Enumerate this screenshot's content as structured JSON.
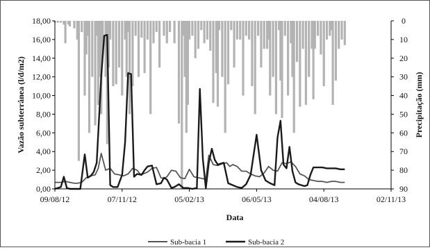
{
  "chart_data": {
    "type": "line",
    "title": "",
    "xlabel": "Data",
    "ylabel": "Vazão subterrânea (l/d/m2)",
    "y2label": "Precipitação (mm)",
    "x_tick_labels": [
      "09/08/12",
      "07/11/12",
      "05/02/13",
      "06/05/13",
      "04/08/13",
      "02/11/13"
    ],
    "x_ticks_days": [
      0,
      90,
      180,
      270,
      360,
      450
    ],
    "xlim_days": [
      0,
      450
    ],
    "y_tick_labels": [
      "0,00",
      "2,00",
      "4,00",
      "6,00",
      "8,00",
      "10,00",
      "12,00",
      "14,00",
      "16,00",
      "18,00"
    ],
    "ylim": [
      0,
      18
    ],
    "y2_tick_labels": [
      "0",
      "10",
      "20",
      "30",
      "40",
      "50",
      "60",
      "70",
      "80",
      "90"
    ],
    "y2lim": [
      0,
      90
    ],
    "y2_inverted": true,
    "grid": false,
    "legend_position": "bottom-center",
    "colors": {
      "sub1": "#555555",
      "sub2": "#1a1a1a",
      "precip": "#b3b3b3"
    },
    "series": [
      {
        "name": "Sub-bacia 1",
        "x": [
          0,
          8,
          14,
          20,
          26,
          30,
          36,
          42,
          48,
          54,
          58,
          62,
          68,
          74,
          80,
          86,
          92,
          98,
          104,
          110,
          114,
          118,
          124,
          130,
          136,
          142,
          146,
          150,
          156,
          162,
          168,
          174,
          180,
          186,
          192,
          198,
          202,
          206,
          212,
          218,
          224,
          230,
          234,
          238,
          244,
          250,
          256,
          262,
          268,
          274,
          280,
          286,
          292,
          298,
          304,
          310,
          316,
          322,
          328,
          334,
          340,
          346,
          352,
          358,
          364,
          370,
          376,
          382,
          388
        ],
        "y": [
          0.7,
          0.7,
          0.8,
          0.7,
          0.6,
          0.6,
          0.7,
          1.2,
          1.4,
          1.5,
          2.2,
          3.8,
          2.0,
          2.2,
          1.6,
          1.5,
          1.4,
          1.6,
          2.2,
          2.0,
          1.6,
          1.6,
          1.8,
          2.2,
          2.3,
          1.2,
          1.1,
          1.3,
          2.0,
          1.9,
          1.2,
          1.1,
          2.1,
          1.3,
          1.2,
          1.1,
          1.0,
          3.6,
          2.6,
          2.5,
          2.7,
          2.8,
          2.4,
          2.6,
          2.4,
          1.9,
          1.9,
          1.6,
          1.4,
          1.3,
          1.7,
          2.4,
          2.0,
          1.9,
          2.8,
          2.7,
          2.9,
          2.4,
          1.6,
          1.4,
          1.0,
          0.9,
          0.8,
          0.8,
          0.7,
          0.8,
          0.8,
          0.7,
          0.7
        ]
      },
      {
        "name": "Sub-bacia 2",
        "x": [
          0,
          8,
          12,
          16,
          20,
          26,
          34,
          40,
          44,
          48,
          52,
          56,
          62,
          66,
          70,
          74,
          78,
          84,
          90,
          94,
          98,
          102,
          106,
          110,
          116,
          120,
          124,
          130,
          136,
          142,
          146,
          150,
          156,
          160,
          166,
          172,
          178,
          184,
          190,
          194,
          198,
          202,
          206,
          210,
          214,
          218,
          222,
          226,
          232,
          238,
          244,
          250,
          256,
          262,
          270,
          276,
          282,
          288,
          294,
          298,
          302,
          306,
          310,
          314,
          318,
          322,
          326,
          330,
          334,
          338,
          342,
          346,
          352,
          358,
          364,
          370,
          376,
          382,
          388
        ],
        "y": [
          0.0,
          0.2,
          1.3,
          0.1,
          0.0,
          0.0,
          0.0,
          3.7,
          1.2,
          1.4,
          1.8,
          2.8,
          12.0,
          16.4,
          16.5,
          0.4,
          0.2,
          0.2,
          1.5,
          5.0,
          12.4,
          12.3,
          1.3,
          1.6,
          1.5,
          2.0,
          2.4,
          2.5,
          0.5,
          0.6,
          1.2,
          1.0,
          0.1,
          0.2,
          0.5,
          0.1,
          0.1,
          0.0,
          0.1,
          10.7,
          3.2,
          0.1,
          2.8,
          4.3,
          3.1,
          2.6,
          2.7,
          2.8,
          0.6,
          0.4,
          0.2,
          0.1,
          0.5,
          1.5,
          5.8,
          2.0,
          0.9,
          0.6,
          0.4,
          5.5,
          7.3,
          2.6,
          2.2,
          4.5,
          1.9,
          0.7,
          0.5,
          0.4,
          0.3,
          0.4,
          1.5,
          2.3,
          2.3,
          2.3,
          2.2,
          2.2,
          2.2,
          2.1,
          2.1
        ]
      },
      {
        "name": "Precipitação",
        "type": "bar",
        "x": [
          0,
          4,
          8,
          12,
          14,
          18,
          20,
          26,
          30,
          32,
          36,
          40,
          42,
          44,
          46,
          50,
          54,
          56,
          58,
          60,
          62,
          64,
          68,
          70,
          72,
          74,
          78,
          82,
          86,
          90,
          94,
          96,
          98,
          100,
          104,
          108,
          112,
          116,
          120,
          124,
          128,
          132,
          136,
          140,
          146,
          150,
          154,
          160,
          166,
          170,
          172,
          174,
          176,
          178,
          180,
          184,
          188,
          192,
          196,
          200,
          204,
          208,
          212,
          216,
          218,
          220,
          224,
          228,
          232,
          236,
          240,
          244,
          248,
          252,
          256,
          260,
          264,
          268,
          272,
          276,
          280,
          284,
          286,
          288,
          292,
          296,
          300,
          302,
          304,
          308,
          312,
          316,
          318,
          320,
          324,
          328,
          332,
          336,
          340,
          344,
          346,
          348,
          352,
          356,
          360,
          364,
          368,
          370,
          372,
          376,
          380,
          384,
          388
        ],
        "y": [
          1,
          1,
          1,
          2,
          12,
          2,
          3,
          4,
          10,
          75,
          6,
          40,
          18,
          8,
          60,
          30,
          56,
          8,
          45,
          30,
          50,
          18,
          30,
          66,
          25,
          10,
          35,
          34,
          25,
          40,
          10,
          30,
          6,
          50,
          35,
          8,
          30,
          9,
          28,
          10,
          50,
          12,
          6,
          25,
          8,
          12,
          6,
          12,
          55,
          90,
          8,
          30,
          60,
          45,
          10,
          8,
          20,
          15,
          5,
          12,
          10,
          16,
          44,
          28,
          46,
          5,
          30,
          60,
          34,
          5,
          25,
          10,
          10,
          40,
          8,
          10,
          35,
          50,
          8,
          25,
          15,
          15,
          10,
          40,
          30,
          50,
          5,
          32,
          52,
          8,
          40,
          12,
          30,
          60,
          22,
          46,
          15,
          45,
          30,
          15,
          42,
          15,
          8,
          18,
          35,
          10,
          8,
          5,
          45,
          32,
          15,
          10,
          13
        ]
      }
    ]
  }
}
